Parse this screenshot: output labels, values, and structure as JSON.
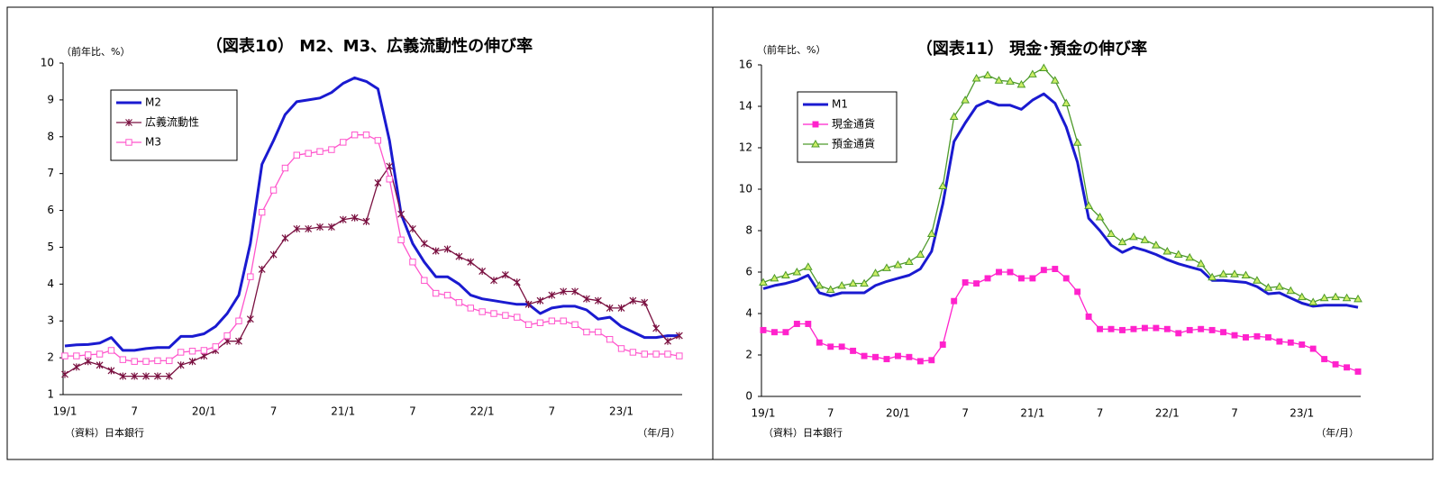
{
  "chart_data": [
    {
      "type": "line",
      "title": "（図表10） M2、M3、広義流動性の伸び率",
      "annotations": [
        "（前年比、%）",
        "（資料）日本銀行",
        "（年/月）"
      ],
      "categories": [
        "19/1",
        null,
        null,
        null,
        null,
        null,
        "7",
        null,
        null,
        null,
        null,
        null,
        "20/1",
        null,
        null,
        null,
        null,
        null,
        "7",
        null,
        null,
        null,
        null,
        null,
        "21/1",
        null,
        null,
        null,
        null,
        null,
        "7",
        null,
        null,
        null,
        null,
        null,
        "22/1",
        null,
        null,
        null,
        null,
        null,
        "7",
        null,
        null,
        null,
        null,
        null,
        "23/1",
        null,
        null,
        null,
        null,
        null
      ],
      "ylim": [
        1,
        10
      ],
      "yticks": [
        1,
        2,
        3,
        4,
        5,
        6,
        7,
        8,
        9,
        10
      ],
      "grid": false,
      "legend": "upper left",
      "series": [
        {
          "name": "M2",
          "color": "#1a1ad0",
          "marker": "none",
          "width": 3,
          "values": [
            2.32,
            2.35,
            2.36,
            2.4,
            2.55,
            2.2,
            2.2,
            2.25,
            2.28,
            2.28,
            2.58,
            2.58,
            2.65,
            2.85,
            3.2,
            3.7,
            5.1,
            7.25,
            7.9,
            8.6,
            8.95,
            9.0,
            9.05,
            9.2,
            9.45,
            9.6,
            9.5,
            9.3,
            7.9,
            5.9,
            5.1,
            4.6,
            4.2,
            4.2,
            4.0,
            3.7,
            3.6,
            3.55,
            3.5,
            3.45,
            3.45,
            3.2,
            3.35,
            3.4,
            3.4,
            3.3,
            3.05,
            3.1,
            2.85,
            2.7,
            2.55,
            2.55,
            2.6,
            2.6
          ]
        },
        {
          "name": "広義流動性",
          "color": "#7a1040",
          "marker": "star",
          "width": 1.3,
          "values": [
            1.55,
            1.75,
            1.9,
            1.8,
            1.65,
            1.5,
            1.5,
            1.5,
            1.5,
            1.5,
            1.8,
            1.9,
            2.05,
            2.2,
            2.45,
            2.45,
            3.05,
            4.4,
            4.8,
            5.25,
            5.5,
            5.5,
            5.55,
            5.55,
            5.75,
            5.8,
            5.7,
            6.75,
            7.2,
            5.9,
            5.5,
            5.1,
            4.9,
            4.95,
            4.75,
            4.6,
            4.35,
            4.1,
            4.25,
            4.05,
            3.45,
            3.55,
            3.7,
            3.8,
            3.8,
            3.6,
            3.55,
            3.35,
            3.35,
            3.55,
            3.5,
            2.8,
            2.45,
            2.6
          ]
        },
        {
          "name": "M3",
          "color": "#ff55cc",
          "marker": "square-open",
          "width": 1.3,
          "values": [
            2.05,
            2.05,
            2.08,
            2.1,
            2.2,
            1.95,
            1.9,
            1.9,
            1.92,
            1.92,
            2.15,
            2.18,
            2.2,
            2.3,
            2.6,
            3.0,
            4.2,
            5.95,
            6.55,
            7.15,
            7.5,
            7.55,
            7.6,
            7.65,
            7.85,
            8.05,
            8.05,
            7.9,
            6.85,
            5.2,
            4.6,
            4.1,
            3.75,
            3.7,
            3.5,
            3.35,
            3.25,
            3.2,
            3.15,
            3.1,
            2.9,
            2.95,
            3.0,
            3.0,
            2.9,
            2.7,
            2.7,
            2.5,
            2.25,
            2.15,
            2.1,
            2.1,
            2.1,
            2.05
          ]
        }
      ]
    },
    {
      "type": "line",
      "title": "（図表11） 現金･預金の伸び率",
      "annotations": [
        "（前年比、%）",
        "（資料）日本銀行",
        "（年/月）"
      ],
      "categories": [
        "19/1",
        null,
        null,
        null,
        null,
        null,
        "7",
        null,
        null,
        null,
        null,
        null,
        "20/1",
        null,
        null,
        null,
        null,
        null,
        "7",
        null,
        null,
        null,
        null,
        null,
        "21/1",
        null,
        null,
        null,
        null,
        null,
        "7",
        null,
        null,
        null,
        null,
        null,
        "22/1",
        null,
        null,
        null,
        null,
        null,
        "7",
        null,
        null,
        null,
        null,
        null,
        "23/1",
        null,
        null,
        null,
        null,
        null
      ],
      "ylim": [
        0,
        16
      ],
      "yticks": [
        0,
        2,
        4,
        6,
        8,
        10,
        12,
        14,
        16
      ],
      "grid": false,
      "legend": "upper left",
      "series": [
        {
          "name": "M1",
          "color": "#1a1ad0",
          "marker": "none",
          "width": 3,
          "values": [
            5.2,
            5.35,
            5.45,
            5.6,
            5.85,
            5.0,
            4.85,
            5.0,
            5.0,
            5.0,
            5.35,
            5.55,
            5.7,
            5.85,
            6.15,
            7.0,
            9.3,
            12.3,
            13.2,
            14.0,
            14.25,
            14.05,
            14.05,
            13.85,
            14.3,
            14.6,
            14.15,
            13.0,
            11.3,
            8.6,
            8.0,
            7.3,
            6.95,
            7.2,
            7.05,
            6.85,
            6.6,
            6.4,
            6.25,
            6.1,
            5.6,
            5.6,
            5.55,
            5.5,
            5.3,
            4.95,
            5.0,
            4.75,
            4.5,
            4.35,
            4.4,
            4.4,
            4.4,
            4.3
          ]
        },
        {
          "name": "現金通貨",
          "color": "#ff22cc",
          "marker": "square",
          "width": 1.3,
          "values": [
            3.2,
            3.1,
            3.1,
            3.5,
            3.5,
            2.6,
            2.4,
            2.4,
            2.2,
            1.95,
            1.9,
            1.8,
            1.95,
            1.9,
            1.7,
            1.75,
            2.5,
            4.6,
            5.5,
            5.45,
            5.7,
            6.0,
            6.0,
            5.7,
            5.7,
            6.1,
            6.15,
            5.7,
            5.05,
            3.85,
            3.25,
            3.25,
            3.2,
            3.25,
            3.3,
            3.3,
            3.25,
            3.05,
            3.2,
            3.25,
            3.2,
            3.1,
            2.95,
            2.85,
            2.9,
            2.85,
            2.65,
            2.6,
            2.5,
            2.3,
            1.8,
            1.55,
            1.4,
            1.2
          ]
        },
        {
          "name": "預金通貨",
          "color": "#4d9a2a",
          "marker": "triangle",
          "marker_fill": "#ccee66",
          "width": 1.3,
          "values": [
            5.5,
            5.7,
            5.85,
            6.0,
            6.25,
            5.35,
            5.15,
            5.35,
            5.45,
            5.45,
            5.95,
            6.2,
            6.35,
            6.5,
            6.85,
            7.85,
            10.15,
            13.5,
            14.3,
            15.35,
            15.5,
            15.25,
            15.2,
            15.05,
            15.55,
            15.85,
            15.25,
            14.15,
            12.25,
            9.2,
            8.65,
            7.85,
            7.45,
            7.7,
            7.55,
            7.3,
            7.0,
            6.85,
            6.7,
            6.4,
            5.75,
            5.9,
            5.9,
            5.85,
            5.6,
            5.25,
            5.3,
            5.1,
            4.8,
            4.55,
            4.75,
            4.8,
            4.75,
            4.7
          ]
        }
      ]
    }
  ]
}
